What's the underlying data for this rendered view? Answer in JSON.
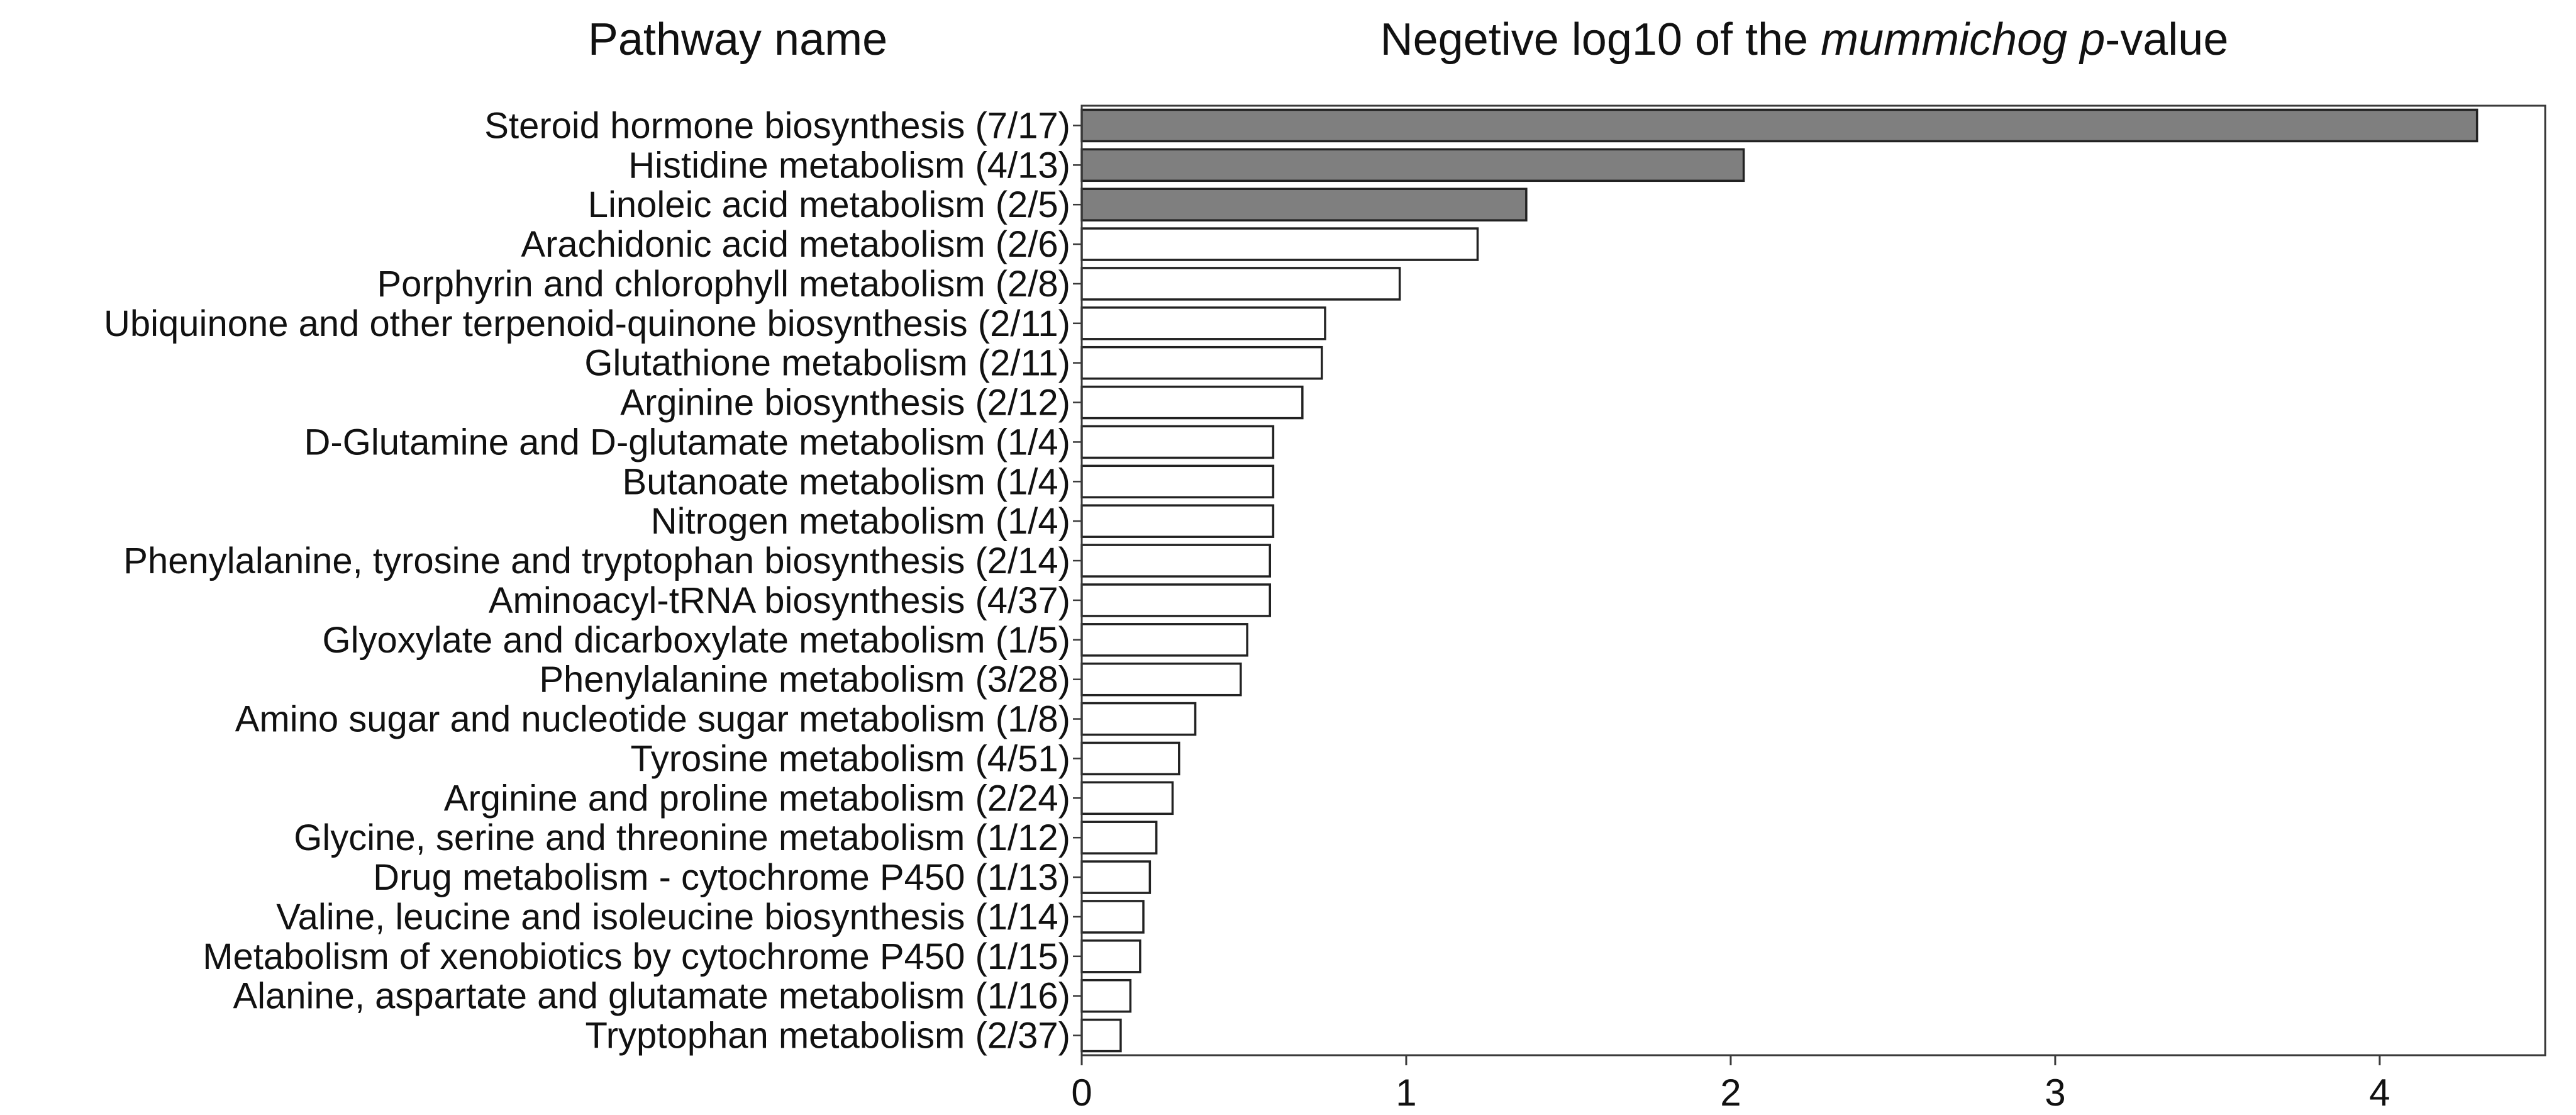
{
  "figure": {
    "left_title": "Pathway name",
    "right_title_parts": {
      "prefix": "Negetive log10 of the ",
      "italic": "mummichog p",
      "suffix": "-value"
    }
  },
  "chart_data": {
    "type": "bar",
    "orientation": "horizontal",
    "title": "Pathway name / Negetive log10 of the mummichog p-value",
    "xlabel": "Negetive log10 of the mummichog p-value",
    "ylabel": "Pathway name",
    "categories": [
      "Steroid hormone biosynthesis (7/17)",
      "Histidine metabolism (4/13)",
      "Linoleic acid metabolism (2/5)",
      "Arachidonic acid metabolism (2/6)",
      "Porphyrin and chlorophyll metabolism (2/8)",
      "Ubiquinone and other terpenoid-quinone biosynthesis (2/11)",
      "Glutathione metabolism (2/11)",
      "Arginine biosynthesis (2/12)",
      "D-Glutamine and D-glutamate metabolism (1/4)",
      "Butanoate metabolism (1/4)",
      "Nitrogen metabolism (1/4)",
      "Phenylalanine, tyrosine and tryptophan biosynthesis (2/14)",
      "Aminoacyl-tRNA biosynthesis (4/37)",
      "Glyoxylate and dicarboxylate metabolism (1/5)",
      "Phenylalanine metabolism (3/28)",
      "Amino sugar and nucleotide sugar metabolism (1/8)",
      "Tyrosine metabolism (4/51)",
      "Arginine and proline metabolism (2/24)",
      "Glycine, serine and threonine metabolism (1/12)",
      "Drug metabolism - cytochrome P450 (1/13)",
      "Valine, leucine and isoleucine biosynthesis (1/14)",
      "Metabolism of xenobiotics by cytochrome P450 (1/15)",
      "Alanine, aspartate and glutamate metabolism (1/16)",
      "Tryptophan metabolism (2/37)"
    ],
    "values": [
      4.3,
      2.04,
      1.37,
      1.22,
      0.98,
      0.75,
      0.74,
      0.68,
      0.59,
      0.59,
      0.59,
      0.58,
      0.58,
      0.51,
      0.49,
      0.35,
      0.3,
      0.28,
      0.23,
      0.21,
      0.19,
      0.18,
      0.15,
      0.12
    ],
    "significant_count": 3,
    "colors": {
      "bar_fill_significant": "#7f7f7f",
      "bar_fill_default": "#ffffff",
      "bar_edge": "#222222",
      "spine": "#3a3a3a",
      "text": "#111111"
    },
    "xticks": [
      0,
      1,
      2,
      3,
      4
    ],
    "xlim": [
      0,
      4.51
    ],
    "grid": false,
    "legend": null
  }
}
